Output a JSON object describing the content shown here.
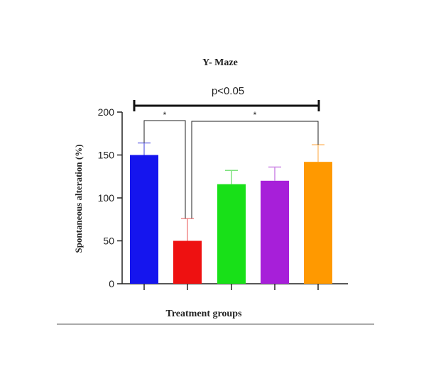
{
  "chart_data": {
    "type": "bar",
    "title": "Y- Maze",
    "xlabel": "Treatment groups",
    "ylabel": "Spontaneous alteration (%)",
    "ylim": [
      0,
      200
    ],
    "yticks": [
      0,
      50,
      100,
      150,
      200
    ],
    "categories": [
      "",
      "",
      "",
      "",
      ""
    ],
    "values": [
      150,
      50,
      116,
      120,
      142
    ],
    "errors": [
      14,
      26,
      16,
      16,
      20
    ],
    "colors": [
      "#1515ee",
      "#ee1111",
      "#18e018",
      "#a71fd9",
      "#ff9900"
    ],
    "error_colors": [
      "#7a7ae8",
      "#f08a8a",
      "#7ee27e",
      "#cc86e6",
      "#ffc27a"
    ],
    "grid": false,
    "legend": "none",
    "annotations": [
      {
        "type": "bracket",
        "from": 0,
        "to": 4,
        "label": "p<0.05"
      },
      {
        "type": "bracket",
        "from": 0,
        "to": 1,
        "label": "*"
      },
      {
        "type": "bracket",
        "from": 1,
        "to": 4,
        "label": "*"
      }
    ]
  }
}
